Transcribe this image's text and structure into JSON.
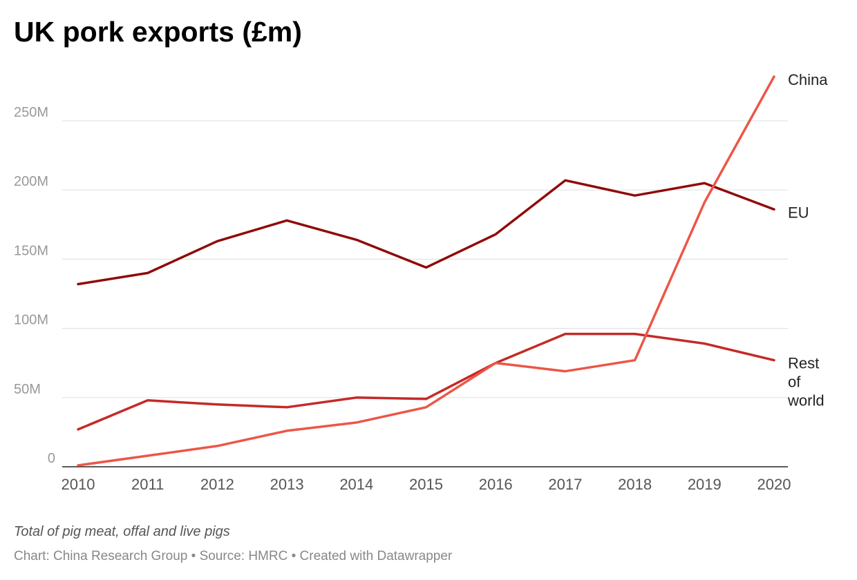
{
  "chart_data": {
    "type": "line",
    "title": "UK pork exports (£m)",
    "notes": "Total of pig meat, offal and live pigs",
    "xlabel": "",
    "ylabel": "",
    "x": [
      2010,
      2011,
      2012,
      2013,
      2014,
      2015,
      2016,
      2017,
      2018,
      2019,
      2020
    ],
    "x_tick_labels": [
      "2010",
      "2011",
      "2012",
      "2013",
      "2014",
      "2015",
      "2016",
      "2017",
      "2018",
      "2019",
      "2020"
    ],
    "ylim": [
      0,
      280
    ],
    "y_ticks": [
      0,
      50,
      100,
      150,
      200,
      250
    ],
    "y_tick_labels": [
      "0",
      "50M",
      "100M",
      "150M",
      "200M",
      "250M"
    ],
    "grid": true,
    "legend": "inline labels at line ends",
    "series": [
      {
        "name": "EU",
        "label_lines": [
          "EU"
        ],
        "color": "#8f0a08",
        "values": [
          132,
          140,
          163,
          178,
          164,
          144,
          168,
          207,
          196,
          205,
          186
        ]
      },
      {
        "name": "Rest of world",
        "label_lines": [
          "Rest",
          "of",
          "world"
        ],
        "color": "#c42a27",
        "values": [
          27,
          48,
          45,
          43,
          50,
          49,
          75,
          96,
          96,
          89,
          77
        ]
      },
      {
        "name": "China",
        "label_lines": [
          "China"
        ],
        "color": "#ec5646",
        "values": [
          1,
          8,
          15,
          26,
          32,
          43,
          75,
          69,
          77,
          191,
          282
        ]
      }
    ]
  },
  "footer": {
    "chart_credit": "Chart: China Research Group",
    "source": "Source: HMRC",
    "created_with": "Created with Datawrapper",
    "separator": "•"
  }
}
